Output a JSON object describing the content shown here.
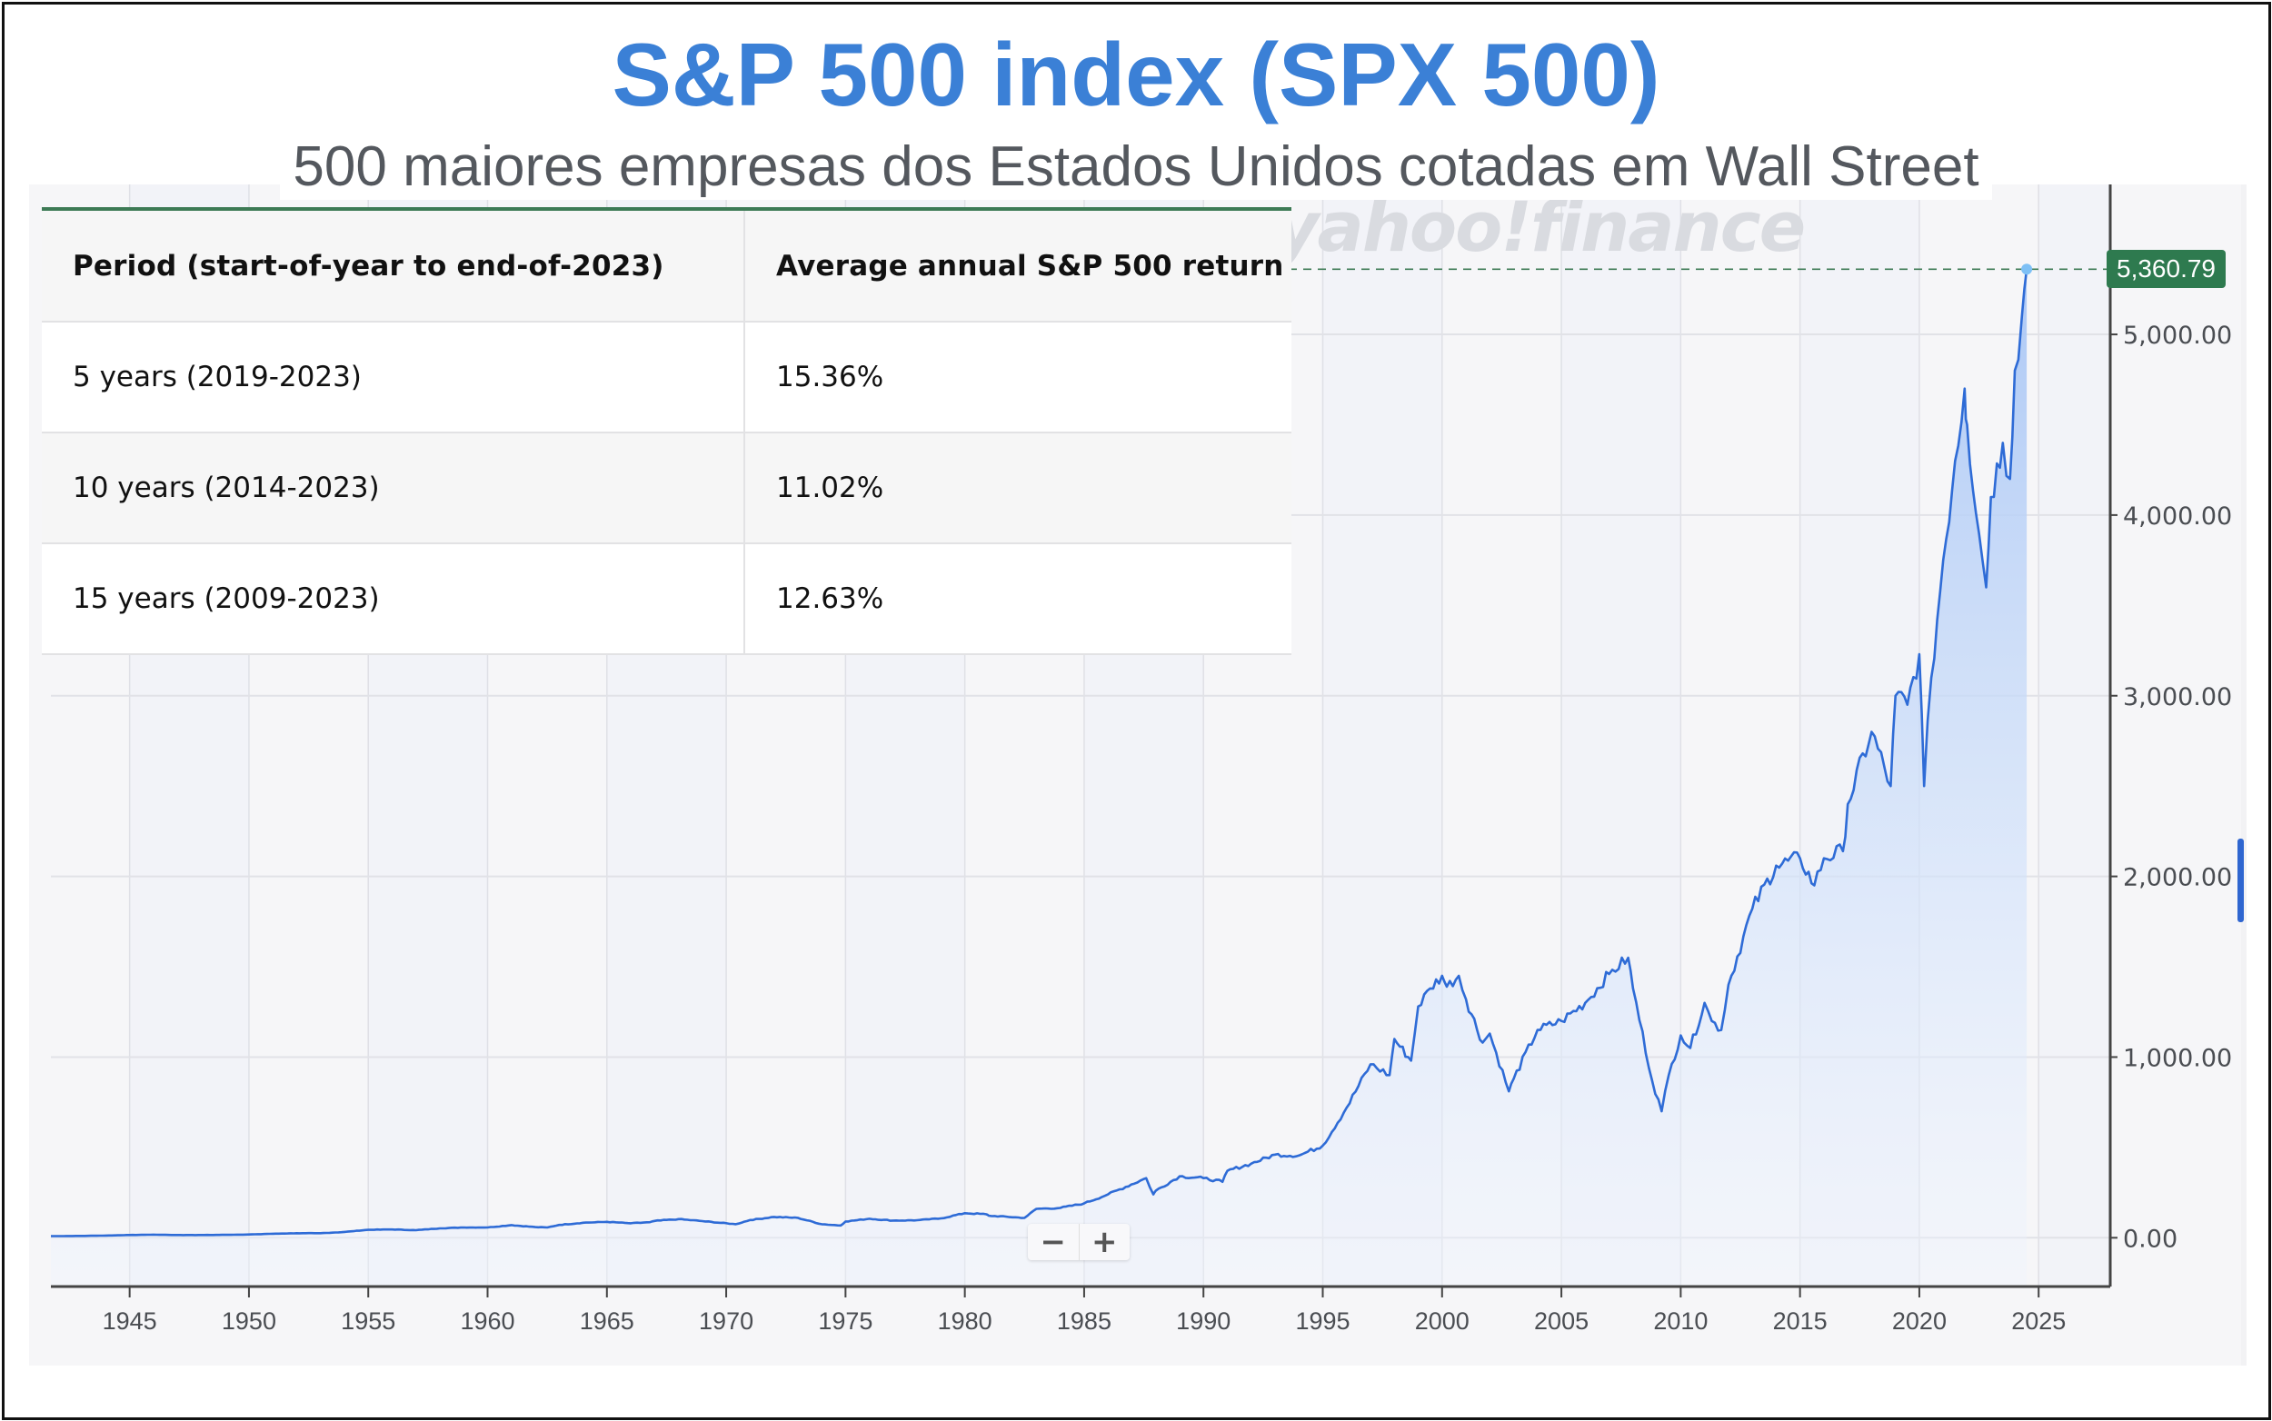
{
  "header": {
    "title": "S&P 500 index (SPX 500)",
    "subtitle": "500 maiores empresas dos Estados Unidos cotadas em Wall Street"
  },
  "table": {
    "columns": [
      "Period (start-of-year to end-of-2023)",
      "Average annual S&P 500 return"
    ],
    "rows": [
      {
        "period": "5 years (2019-2023)",
        "return": "15.36%"
      },
      {
        "period": "10 years (2014-2023)",
        "return": "11.02%"
      },
      {
        "period": "15 years (2009-2023)",
        "return": "12.63%"
      }
    ]
  },
  "watermark": "yahoo!finance",
  "zoom_controls": {
    "minus": "−",
    "plus": "+"
  },
  "colors": {
    "title": "#3b80d6",
    "line": "#2e6bd6",
    "fill_top": "#aac7f5",
    "last_price_badge": "#2e7a4f",
    "last_point": "#7ec0f5"
  },
  "chart_data": {
    "type": "area",
    "title": "S&P 500 index (SPX 500)",
    "xlabel": "",
    "ylabel": "",
    "x_ticks": [
      "1945",
      "1950",
      "1955",
      "1960",
      "1965",
      "1970",
      "1975",
      "1980",
      "1985",
      "1990",
      "1995",
      "2000",
      "2005",
      "2010",
      "2015",
      "2020",
      "2025"
    ],
    "y_ticks": [
      "0.00",
      "1,000.00",
      "2,000.00",
      "3,000.00",
      "4,000.00",
      "5,000.00"
    ],
    "xlim": [
      1941.7,
      2028.0
    ],
    "ylim": [
      -270,
      5830
    ],
    "grid": true,
    "last_value": 5360.79,
    "last_value_label": "5,360.79",
    "series": [
      {
        "name": "S&P 500",
        "x": [
          1941.7,
          1943,
          1944,
          1945,
          1946,
          1947,
          1948,
          1949,
          1950,
          1951,
          1952,
          1953,
          1954,
          1955,
          1956,
          1957,
          1958,
          1959,
          1960,
          1961,
          1962,
          1962.5,
          1963,
          1964,
          1965,
          1966,
          1966.8,
          1967,
          1968,
          1969,
          1970.4,
          1971,
          1972,
          1973,
          1974,
          1974.8,
          1975,
          1976,
          1977,
          1978,
          1979,
          1980,
          1980.9,
          1981,
          1982.5,
          1983,
          1984,
          1985,
          1986,
          1987.6,
          1987.9,
          1988,
          1989,
          1990,
          1990.8,
          1991,
          1992,
          1993,
          1994,
          1995,
          1996,
          1997,
          1997.8,
          1998,
          1998.7,
          1999,
          1999.5,
          2000,
          2000.2,
          2000.7,
          2001,
          2001.7,
          2002,
          2002.8,
          2003,
          2004,
          2005,
          2006,
          2007,
          2007.8,
          2008,
          2008.8,
          2009.2,
          2009.5,
          2010,
          2010.4,
          2011,
          2011.3,
          2011.7,
          2012,
          2013,
          2014,
          2015,
          2015.6,
          2016,
          2016.8,
          2017,
          2018,
          2018.8,
          2019,
          2019.5,
          2020,
          2020.2,
          2020.5,
          2021,
          2021.5,
          2021.9,
          2022,
          2022.5,
          2022.8,
          2023,
          2023.5,
          2023.8,
          2024,
          2024.3,
          2024.5
        ],
        "y": [
          9,
          10,
          12,
          15,
          17,
          15,
          15,
          16,
          18,
          22,
          25,
          25,
          32,
          44,
          46,
          42,
          52,
          57,
          57,
          70,
          59,
          57,
          71,
          83,
          88,
          80,
          86,
          93,
          103,
          92,
          75,
          98,
          115,
          110,
          75,
          68,
          90,
          105,
          95,
          97,
          107,
          136,
          130,
          122,
          110,
          160,
          165,
          190,
          240,
          330,
          240,
          260,
          340,
          330,
          310,
          370,
          410,
          460,
          455,
          510,
          720,
          960,
          900,
          1100,
          980,
          1280,
          1380,
          1450,
          1390,
          1450,
          1320,
          1080,
          1130,
          810,
          880,
          1150,
          1200,
          1300,
          1460,
          1550,
          1380,
          870,
          700,
          900,
          1120,
          1050,
          1300,
          1200,
          1150,
          1400,
          1820,
          2060,
          2100,
          1950,
          2100,
          2140,
          2400,
          2800,
          2500,
          3000,
          2950,
          3230,
          2500,
          3100,
          3750,
          4300,
          4700,
          4500,
          3900,
          3600,
          4100,
          4400,
          4200,
          4800,
          5100,
          5360.79
        ]
      }
    ]
  }
}
